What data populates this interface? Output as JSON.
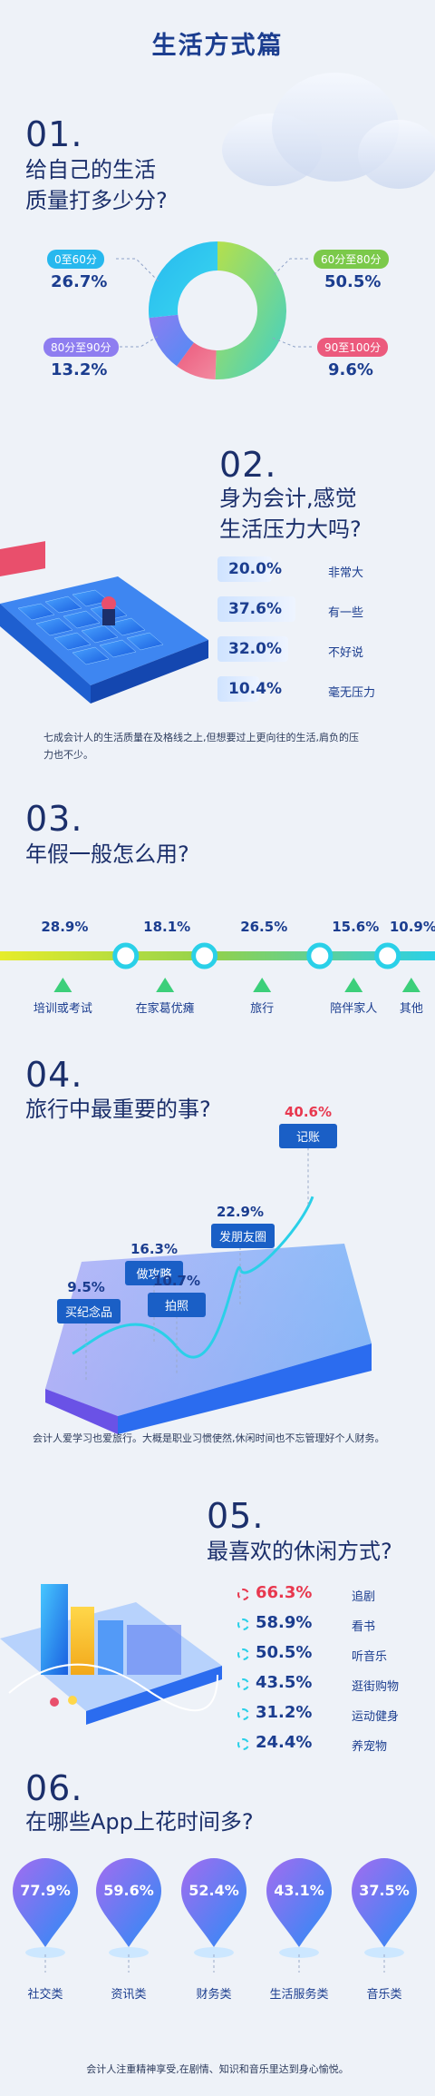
{
  "page_title": "生活方式篇",
  "colors": {
    "dark_blue": "#1b3d8f",
    "accent_red": "#e8384f",
    "green": "#8fd14f",
    "cyan": "#2ad0e8"
  },
  "s1": {
    "no": "01.",
    "question_line1": "给自己的生活",
    "question_line2": "质量打多少分?",
    "labels": [
      "0至60分",
      "60分至80分",
      "80分至90分",
      "90至100分"
    ],
    "values": [
      "26.7%",
      "50.5%",
      "13.2%",
      "9.6%"
    ]
  },
  "s2": {
    "no": "02.",
    "question_line1": "身为会计,感觉",
    "question_line2": "生活压力大吗?",
    "values": [
      "20.0%",
      "37.6%",
      "32.0%",
      "10.4%"
    ],
    "labels": [
      "非常大",
      "有一些",
      "不好说",
      "毫无压力"
    ],
    "note_line1": "七成会计人的生活质量在及格线之上,但想要过上更向往的生活,肩负的压",
    "note_line2": "力也不少。"
  },
  "s3": {
    "no": "03.",
    "question": "年假一般怎么用?",
    "values": [
      "28.9%",
      "18.1%",
      "26.5%",
      "15.6%",
      "10.9%"
    ],
    "labels": [
      "培训或考试",
      "在家葛优瘫",
      "旅行",
      "陪伴家人",
      "其他"
    ]
  },
  "s4": {
    "no": "04.",
    "question": "旅行中最重要的事?",
    "values": [
      "9.5%",
      "16.3%",
      "10.7%",
      "22.9%",
      "40.6%"
    ],
    "labels": [
      "买纪念品",
      "做攻略",
      "拍照",
      "发朋友圈",
      "记账"
    ],
    "note": "会计人爱学习也爱旅行。大概是职业习惯使然,休闲时间也不忘管理好个人财务。"
  },
  "s5": {
    "no": "05.",
    "question": "最喜欢的休闲方式?",
    "values": [
      "66.3%",
      "58.9%",
      "50.5%",
      "43.5%",
      "31.2%",
      "24.4%"
    ],
    "labels": [
      "追剧",
      "看书",
      "听音乐",
      "逛街购物",
      "运动健身",
      "养宠物"
    ]
  },
  "s6": {
    "no": "06.",
    "question": "在哪些App上花时间多?",
    "values": [
      "77.9%",
      "59.6%",
      "52.4%",
      "43.1%",
      "37.5%"
    ],
    "labels": [
      "社交类",
      "资讯类",
      "财务类",
      "生活服务类",
      "音乐类"
    ],
    "note": "会计人注重精神享受,在剧情、知识和音乐里达到身心愉悦。"
  },
  "chart_data": [
    {
      "type": "pie",
      "title": "给自己的生活质量打多少分?",
      "categories": [
        "0至60分",
        "60分至80分",
        "80分至90分",
        "90至100分"
      ],
      "values": [
        26.7,
        50.5,
        13.2,
        9.6
      ]
    },
    {
      "type": "bar",
      "title": "身为会计,感觉生活压力大吗?",
      "categories": [
        "非常大",
        "有一些",
        "不好说",
        "毫无压力"
      ],
      "values": [
        20.0,
        37.6,
        32.0,
        10.4
      ]
    },
    {
      "type": "bar",
      "title": "年假一般怎么用?",
      "categories": [
        "培训或考试",
        "在家葛优瘫",
        "旅行",
        "陪伴家人",
        "其他"
      ],
      "values": [
        28.9,
        18.1,
        26.5,
        15.6,
        10.9
      ]
    },
    {
      "type": "line",
      "title": "旅行中最重要的事?",
      "categories": [
        "买纪念品",
        "做攻略",
        "拍照",
        "发朋友圈",
        "记账"
      ],
      "values": [
        9.5,
        16.3,
        10.7,
        22.9,
        40.6
      ]
    },
    {
      "type": "bar",
      "title": "最喜欢的休闲方式?",
      "categories": [
        "追剧",
        "看书",
        "听音乐",
        "逛街购物",
        "运动健身",
        "养宠物"
      ],
      "values": [
        66.3,
        58.9,
        50.5,
        43.5,
        31.2,
        24.4
      ]
    },
    {
      "type": "bar",
      "title": "在哪些App上花时间多?",
      "categories": [
        "社交类",
        "资讯类",
        "财务类",
        "生活服务类",
        "音乐类"
      ],
      "values": [
        77.9,
        59.6,
        52.4,
        43.1,
        37.5
      ]
    }
  ]
}
